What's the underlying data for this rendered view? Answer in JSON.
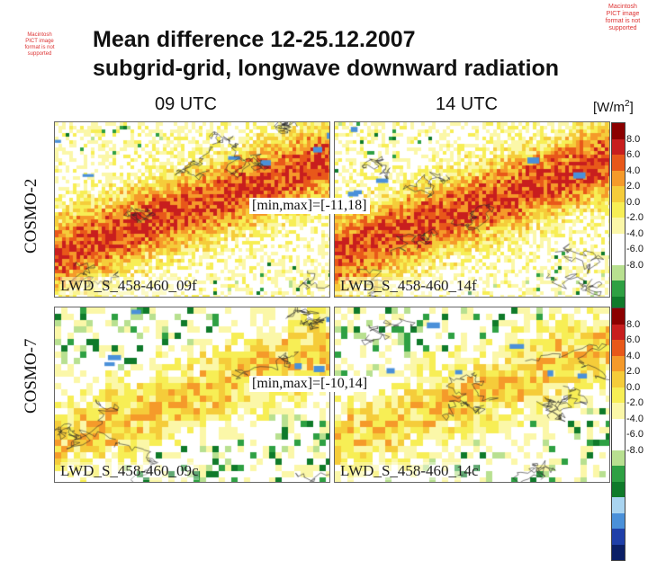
{
  "title": {
    "line1": "Mean difference 12-25.12.2007",
    "line2": "subgrid-grid, longwave downward radiation"
  },
  "columns": {
    "left": "09 UTC",
    "right": "14 UTC"
  },
  "unit": {
    "base": "[W/m",
    "exp": "2",
    "close": "]"
  },
  "rows": [
    {
      "label": "COSMO-2",
      "minmax": "[min,max]=[-11,18]"
    },
    {
      "label": "COSMO-7",
      "minmax": "[min,max]=[-10,14]"
    }
  ],
  "panels": [
    {
      "caption": "LWD_S_458-460_09f"
    },
    {
      "caption": "LWD_S_458-460_14f"
    },
    {
      "caption": "LWD_S_458-460_09c"
    },
    {
      "caption": "LWD_S_458-460_14c"
    }
  ],
  "legend": {
    "ticks": [
      "8.0",
      "6.0",
      "4.0",
      "2.0",
      "0.0",
      "-2.0",
      "-4.0",
      "-6.0",
      "-8.0"
    ],
    "colors": [
      "#8b0000",
      "#c81e1e",
      "#e8581a",
      "#f59a2a",
      "#f5cc3a",
      "#f7ee55",
      "#fbf7a8",
      "#ffffff",
      "#ffffff",
      "#b8e090",
      "#2ea043",
      "#0f7a2a",
      "#a9d4f0",
      "#4a90d9",
      "#1f3fa8",
      "#0b1f66"
    ]
  },
  "placeholders": {
    "top_left": "Macintosh PICT image format is not supported",
    "top_right": "Macintosh PICT image format is not supported"
  }
}
